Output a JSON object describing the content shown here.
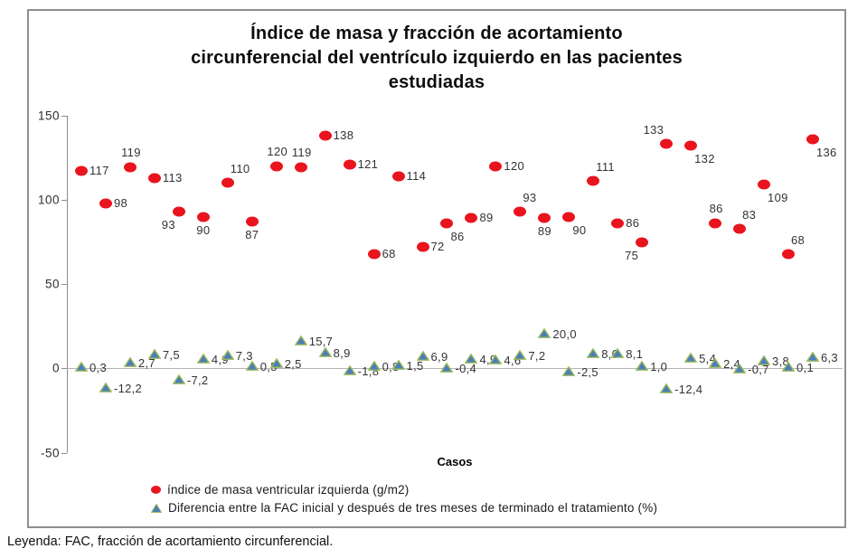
{
  "caption": "Leyenda: FAC, fracción de acortamiento circunferencial.",
  "chart_data": {
    "type": "scatter",
    "title": "Índice de masa y fracción de acortamiento circunferencial del ventrículo izquierdo en las pacientes estudiadas",
    "title_lines": [
      "Índice de masa y fracción de acortamiento",
      "circunferencial del ventrículo izquierdo en las pacientes",
      "estudiadas"
    ],
    "xlabel": "Casos",
    "ylim": [
      -50,
      150
    ],
    "yticks": [
      "150",
      "100",
      "50",
      "0",
      "-50"
    ],
    "ytick_values": [
      150,
      100,
      50,
      0,
      -50
    ],
    "grid": false,
    "legend_position": "bottom-left",
    "n_points": 31,
    "series": [
      {
        "name": "índice de masa ventricular izquierda (g/m2)",
        "marker": "circle",
        "color": "#e9141d",
        "values": [
          117,
          98,
          119,
          113,
          93,
          90,
          110,
          87,
          120,
          119,
          138,
          121,
          68,
          114,
          72,
          86,
          89,
          120,
          93,
          89,
          90,
          111,
          86,
          75,
          133,
          132,
          86,
          83,
          109,
          68,
          136
        ],
        "labels": [
          "117",
          "98",
          "119",
          "113",
          "93",
          "90",
          "110",
          "87",
          "120",
          "119",
          "138",
          "121",
          "68",
          "114",
          "72",
          "86",
          "89",
          "120",
          "93",
          "89",
          "90",
          "111",
          "86",
          "75",
          "133",
          "132",
          "86",
          "83",
          "109",
          "68",
          "136"
        ],
        "label_positions": [
          "r",
          "r",
          "a",
          "r",
          "bl",
          "b",
          "ar",
          "b",
          "a",
          "a",
          "r",
          "r",
          "r",
          "r",
          "r",
          "br",
          "r",
          "r",
          "ar",
          "b",
          "br",
          "ar",
          "r",
          "bl",
          "al",
          "br",
          "a",
          "ar",
          "br",
          "ar",
          "br"
        ]
      },
      {
        "name": "Diferencia entre la FAC inicial y después de tres meses de terminado el tratamiento (%)",
        "marker": "triangle",
        "fill": "#4a7ebb",
        "stroke": "#9cbb59",
        "values": [
          0.3,
          -12.2,
          2.7,
          7.5,
          -7.2,
          4.9,
          7.3,
          0.5,
          2.5,
          15.7,
          8.9,
          -1.8,
          0.8,
          1.5,
          6.9,
          -0.4,
          4.9,
          4.6,
          7.2,
          20.0,
          -2.5,
          8.0,
          8.1,
          1.0,
          -12.4,
          5.4,
          2.4,
          -0.7,
          3.8,
          0.1,
          6.3
        ],
        "labels": [
          "0,3",
          "-12,2",
          "2,7",
          "7,5",
          "-7,2",
          "4,9",
          "7,3",
          "0,5",
          "2,5",
          "15,7",
          "8,9",
          "-1,8",
          "0,8",
          "1,5",
          "6,9",
          "-0,4",
          "4,9",
          "4,6",
          "7,2",
          "20,0",
          "-2,5",
          "8,0",
          "8,1",
          "1,0",
          "-12,4",
          "5,4",
          "2,4",
          "-0,7",
          "3,8",
          "0,1",
          "6,3"
        ]
      }
    ],
    "colors": {
      "axis": "#8c8c8c",
      "zero_line": "#b4b4b4",
      "label_text": "#333333"
    }
  }
}
